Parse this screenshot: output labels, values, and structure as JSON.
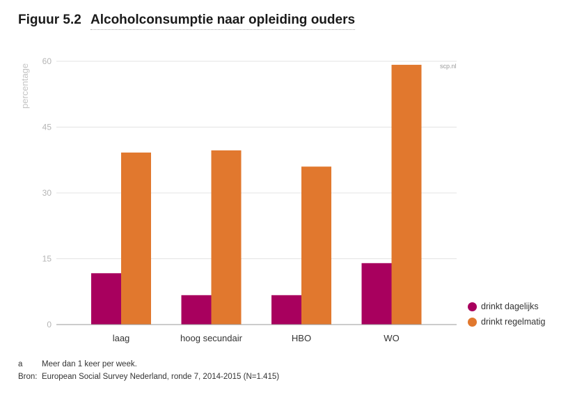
{
  "figure": {
    "number": "Figuur 5.2",
    "title": "Alcoholconsumptie naar opleiding ouders",
    "credit": "scp.nl"
  },
  "colors": {
    "daily": "#a8005e",
    "regular": "#e1782e",
    "grid": "#e3e3e3",
    "axis": "#999999"
  },
  "chart_data": {
    "type": "bar",
    "title": "Alcoholconsumptie naar opleiding ouders",
    "xlabel": "",
    "ylabel": "percentage",
    "ylim": [
      0,
      60
    ],
    "yticks": [
      0,
      15,
      30,
      45,
      60
    ],
    "grid": true,
    "legend_position": "bottom-right",
    "categories": [
      "laag",
      "hoog secundair",
      "HBO",
      "WO"
    ],
    "series": [
      {
        "name": "drinkt dagelijks",
        "values": [
          11.7,
          6.7,
          6.7,
          14.0
        ]
      },
      {
        "name": "drinkt regelmatig",
        "values": [
          39.2,
          39.7,
          36.0,
          59.2
        ]
      }
    ]
  },
  "legend": [
    {
      "label": "drinkt dagelijks"
    },
    {
      "label": "drinkt regelmatig"
    }
  ],
  "footnotes": [
    {
      "key": "a",
      "text": "Meer dan 1 keer per week."
    },
    {
      "key": "Bron:",
      "text": "European Social Survey Nederland, ronde 7, 2014-2015 (N=1.415)"
    }
  ]
}
